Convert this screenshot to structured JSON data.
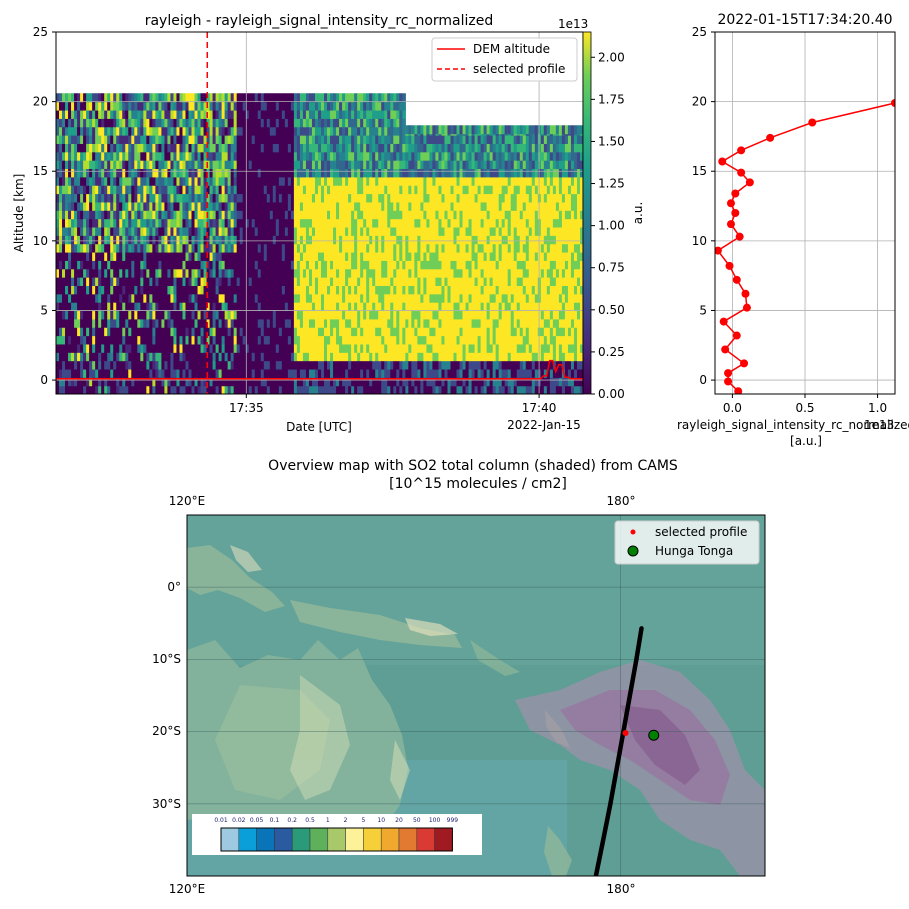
{
  "chart_data": [
    {
      "type": "heatmap",
      "title": "rayleigh - rayleigh_signal_intensity_rc_normalized",
      "xlabel": "Date [UTC]",
      "ylabel": "Altitude [km]",
      "x_ticks": [
        "17:35",
        "17:40"
      ],
      "x_date_label": "2022-Jan-15",
      "ylim": [
        -1,
        25
      ],
      "y_ticks": [
        0,
        5,
        10,
        15,
        20,
        25
      ],
      "grid": true,
      "colorbar": {
        "label": "a.u.",
        "offset_label": "1e13",
        "range": [
          0,
          2.15
        ],
        "ticks": [
          0.0,
          0.25,
          0.5,
          0.75,
          1.0,
          1.25,
          1.5,
          1.75,
          2.0
        ],
        "tick_labels": [
          "0.00",
          "0.25",
          "0.50",
          "0.75",
          "1.00",
          "1.25",
          "1.50",
          "1.75",
          "2.00"
        ],
        "colormap": "viridis"
      },
      "legend": {
        "placement": "top-right",
        "entries": [
          {
            "label": "DEM altitude",
            "style": "solid",
            "color": "#ff0000"
          },
          {
            "label": "selected profile",
            "style": "dashed",
            "color": "#ff0000"
          }
        ]
      },
      "selected_profile_time": "17:34:20",
      "dem_altitude_km": [
        0.1,
        0.1,
        0.1,
        0.1,
        0.1,
        0.1,
        0.1,
        0.1,
        0.1,
        0.1,
        0.1,
        0.3,
        1.4,
        0.6,
        1.1,
        0.2
      ]
    },
    {
      "type": "line",
      "title": "2022-01-15T17:34:20.40",
      "xlabel": "rayleigh_signal_intensity_rc_normalized",
      "xlabel_units": "[a.u.]",
      "x_offset_label": "1e13",
      "ylim": [
        -1,
        25
      ],
      "xlim": [
        -0.12,
        1.12
      ],
      "x_ticks": [
        0.0,
        0.5,
        1.0
      ],
      "x_tick_labels": [
        "0.0",
        "0.5",
        "1.0"
      ],
      "y_ticks": [
        0,
        5,
        10,
        15,
        20,
        25
      ],
      "grid": true,
      "series": [
        {
          "color": "#ff0000",
          "x": [
            0.04,
            -0.03,
            -0.03,
            0.08,
            -0.05,
            0.03,
            -0.06,
            0.1,
            0.09,
            0.03,
            -0.02,
            -0.1,
            0.05,
            -0.01,
            0.02,
            -0.01,
            0.02,
            0.12,
            0.06,
            -0.07,
            0.06,
            0.26,
            0.55,
            1.12
          ],
          "y": [
            -0.8,
            -0.1,
            0.5,
            1.2,
            2.2,
            3.2,
            4.2,
            5.2,
            6.2,
            7.2,
            8.2,
            9.3,
            10.3,
            11.2,
            12.0,
            12.7,
            13.4,
            14.2,
            14.9,
            15.7,
            16.5,
            17.4,
            18.5,
            19.9
          ]
        }
      ]
    },
    {
      "type": "map",
      "title": "Overview map with SO2 total column (shaded) from CAMS",
      "subtitle": "[10^15 molecules / cm2]",
      "lon_labels_top": [
        "120°E",
        "180°"
      ],
      "lon_labels_bottom": [
        "120°E",
        "180°"
      ],
      "lat_labels": [
        "0°",
        "10°S",
        "20°S",
        "30°S"
      ],
      "legend": {
        "placement": "top-right",
        "entries": [
          {
            "label": "selected profile",
            "marker": "dot",
            "color": "#ff0000"
          },
          {
            "label": "Hunga Tonga",
            "marker": "circle",
            "color": "#008000"
          }
        ]
      },
      "so2_levels": [
        "0.01",
        "0.02",
        "0.05",
        "0.1",
        "0.2",
        "0.5",
        "1",
        "2",
        "5",
        "10",
        "20",
        "50",
        "100",
        "999"
      ],
      "so2_colors": [
        "#9ecae1",
        "#0b9fd9",
        "#0a74b8",
        "#2a5aa0",
        "#2a9a78",
        "#5fb05a",
        "#a8c86a",
        "#fdf29a",
        "#f5d038",
        "#f0a92e",
        "#e27a32",
        "#d93a33",
        "#a01a22"
      ],
      "hunga_tonga": {
        "lon": -175.4,
        "lat": -20.5
      },
      "selected_profile": {
        "lon": -179.3,
        "lat": -20.2
      },
      "track": [
        {
          "lon": 176.6,
          "lat": -40.0
        },
        {
          "lon": 177.6,
          "lat": -35.0
        },
        {
          "lon": 178.6,
          "lat": -30.0
        },
        {
          "lon": 179.5,
          "lat": -25.0
        },
        {
          "lon": -179.6,
          "lat": -20.0
        },
        {
          "lon": -178.7,
          "lat": -15.0
        },
        {
          "lon": -177.8,
          "lat": -10.0
        },
        {
          "lon": -177.1,
          "lat": -5.7
        }
      ]
    }
  ]
}
